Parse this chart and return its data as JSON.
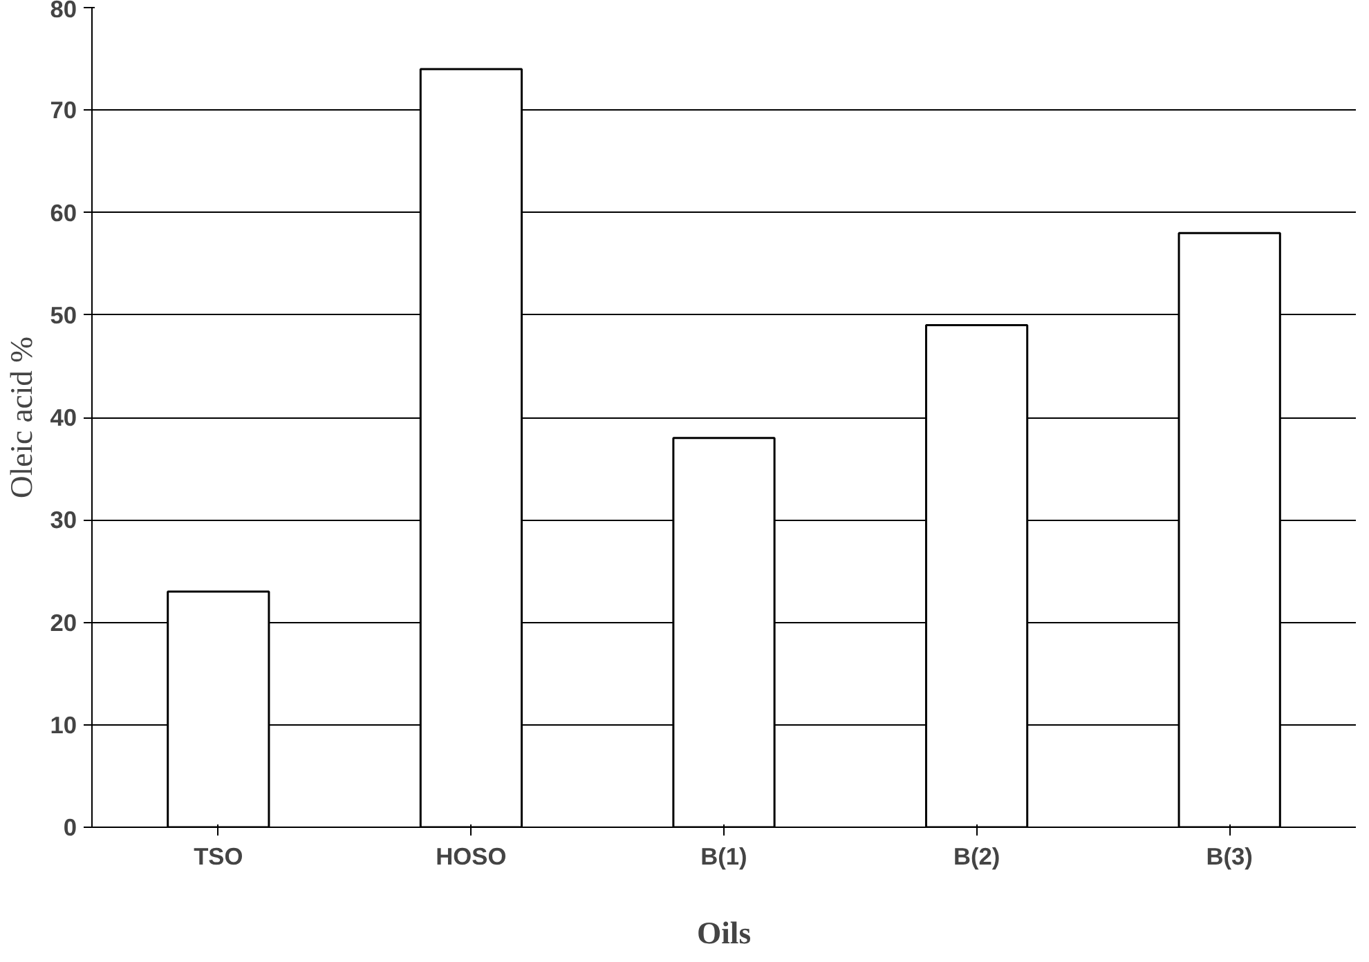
{
  "chart_data": {
    "type": "bar",
    "xlabel": "Oils",
    "ylabel": "Oleic acid %",
    "categories": [
      "TSO",
      "HOSO",
      "B(1)",
      "B(2)",
      "B(3)"
    ],
    "values": [
      23,
      74,
      38,
      49,
      58
    ],
    "color": "#ffffff",
    "ylim": [
      0,
      80
    ],
    "yticks": [
      0,
      10,
      20,
      30,
      40,
      50,
      60,
      70,
      80
    ],
    "grid": "y"
  }
}
